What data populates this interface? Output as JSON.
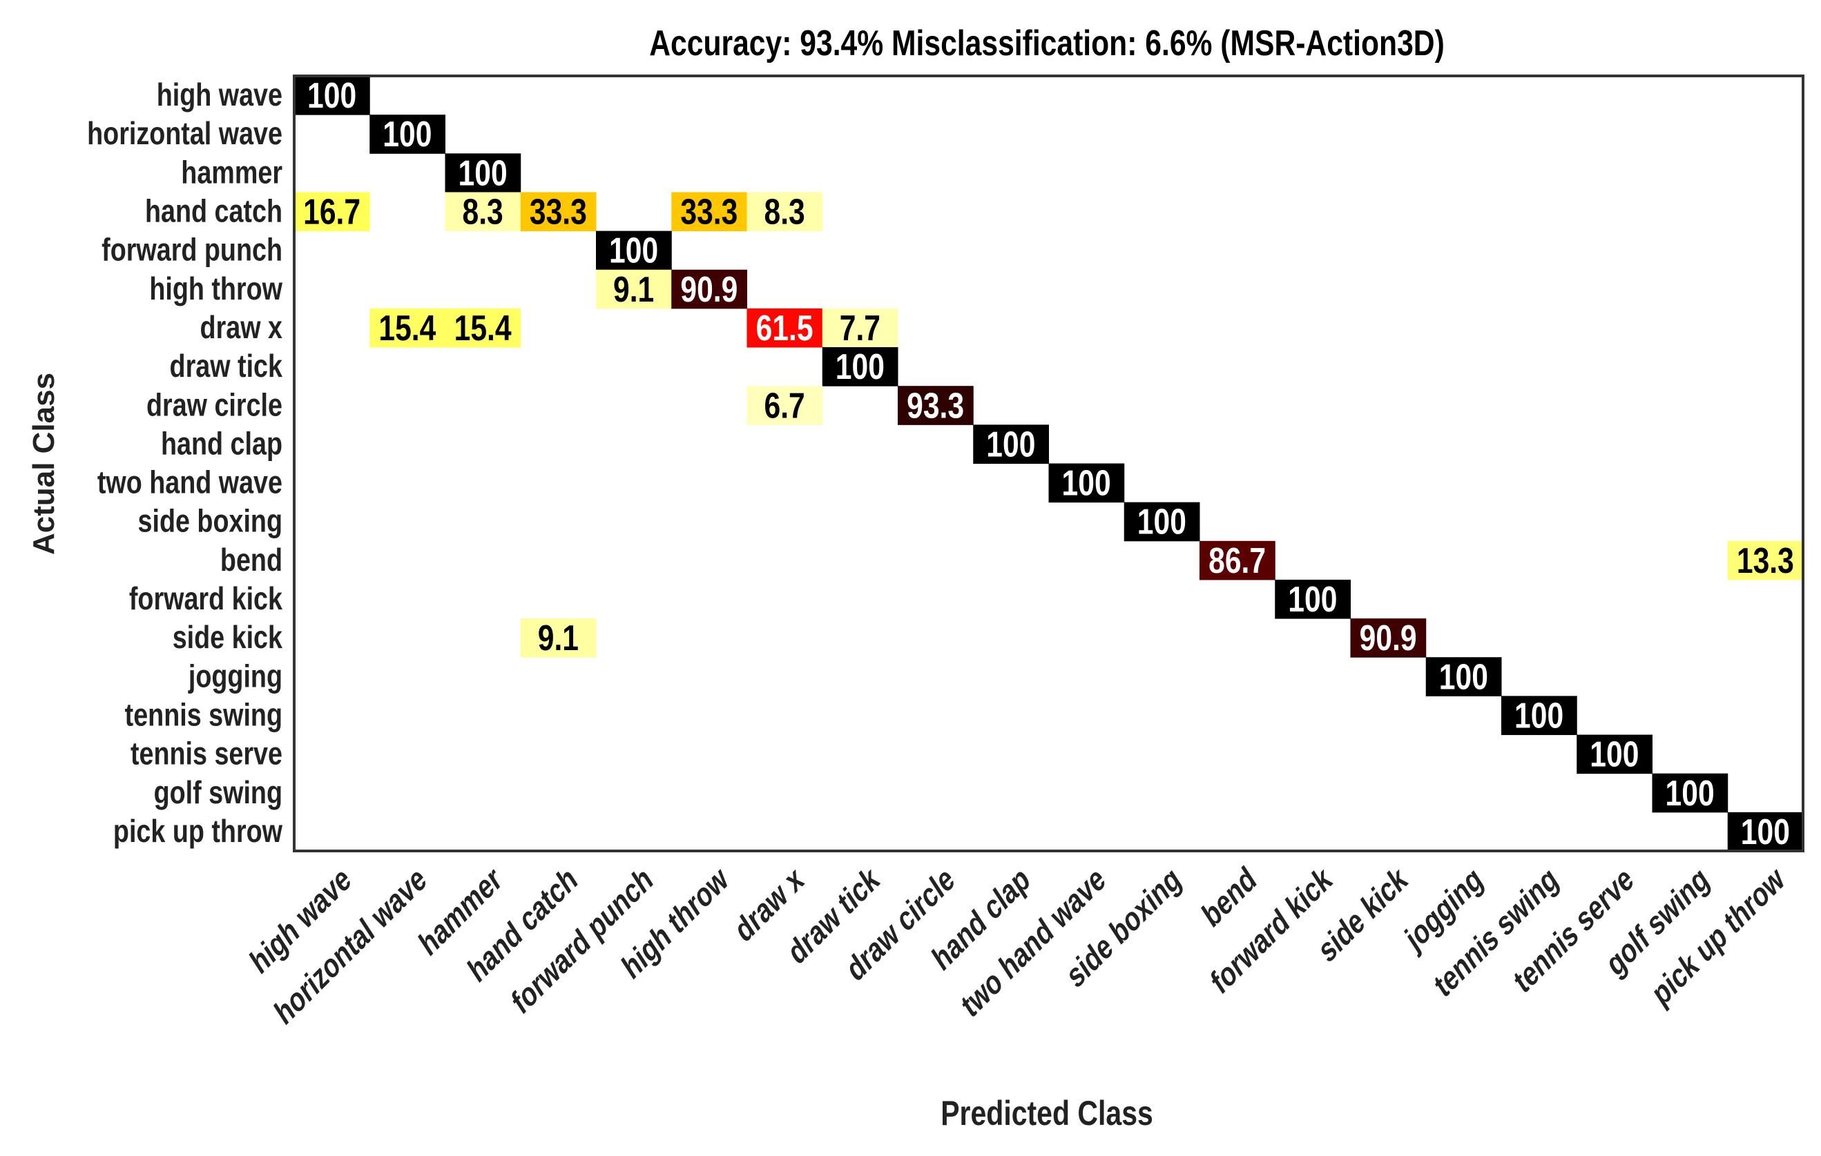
{
  "chart_data": {
    "type": "heatmap",
    "title": "Accuracy: 93.4%  Misclassification: 6.6% (MSR-Action3D)",
    "xlabel": "Predicted Class",
    "ylabel": "Actual Class",
    "colormap": "hot (reversed): 0 = white, 100 = black",
    "value_range": [
      0,
      100
    ],
    "zero_cells_shown": false,
    "grid": false,
    "categories": [
      "high wave",
      "horizontal wave",
      "hammer",
      "hand catch",
      "forward punch",
      "high throw",
      "draw x",
      "draw tick",
      "draw circle",
      "hand clap",
      "two hand wave",
      "side boxing",
      "bend",
      "forward kick",
      "side kick",
      "jogging",
      "tennis swing",
      "tennis serve",
      "golf swing",
      "pick up throw"
    ],
    "matrix": [
      [
        100,
        0,
        0,
        0,
        0,
        0,
        0,
        0,
        0,
        0,
        0,
        0,
        0,
        0,
        0,
        0,
        0,
        0,
        0,
        0
      ],
      [
        0,
        100,
        0,
        0,
        0,
        0,
        0,
        0,
        0,
        0,
        0,
        0,
        0,
        0,
        0,
        0,
        0,
        0,
        0,
        0
      ],
      [
        0,
        0,
        100,
        0,
        0,
        0,
        0,
        0,
        0,
        0,
        0,
        0,
        0,
        0,
        0,
        0,
        0,
        0,
        0,
        0
      ],
      [
        16.7,
        0,
        8.3,
        33.3,
        0,
        33.3,
        8.3,
        0,
        0,
        0,
        0,
        0,
        0,
        0,
        0,
        0,
        0,
        0,
        0,
        0
      ],
      [
        0,
        0,
        0,
        0,
        100,
        0,
        0,
        0,
        0,
        0,
        0,
        0,
        0,
        0,
        0,
        0,
        0,
        0,
        0,
        0
      ],
      [
        0,
        0,
        0,
        0,
        9.1,
        90.9,
        0,
        0,
        0,
        0,
        0,
        0,
        0,
        0,
        0,
        0,
        0,
        0,
        0,
        0
      ],
      [
        0,
        15.4,
        15.4,
        0,
        0,
        0,
        61.5,
        7.7,
        0,
        0,
        0,
        0,
        0,
        0,
        0,
        0,
        0,
        0,
        0,
        0
      ],
      [
        0,
        0,
        0,
        0,
        0,
        0,
        0,
        100,
        0,
        0,
        0,
        0,
        0,
        0,
        0,
        0,
        0,
        0,
        0,
        0
      ],
      [
        0,
        0,
        0,
        0,
        0,
        0,
        6.7,
        0,
        93.3,
        0,
        0,
        0,
        0,
        0,
        0,
        0,
        0,
        0,
        0,
        0
      ],
      [
        0,
        0,
        0,
        0,
        0,
        0,
        0,
        0,
        0,
        100,
        0,
        0,
        0,
        0,
        0,
        0,
        0,
        0,
        0,
        0
      ],
      [
        0,
        0,
        0,
        0,
        0,
        0,
        0,
        0,
        0,
        0,
        100,
        0,
        0,
        0,
        0,
        0,
        0,
        0,
        0,
        0
      ],
      [
        0,
        0,
        0,
        0,
        0,
        0,
        0,
        0,
        0,
        0,
        0,
        100,
        0,
        0,
        0,
        0,
        0,
        0,
        0,
        0
      ],
      [
        0,
        0,
        0,
        0,
        0,
        0,
        0,
        0,
        0,
        0,
        0,
        0,
        86.7,
        0,
        0,
        0,
        0,
        0,
        0,
        13.3
      ],
      [
        0,
        0,
        0,
        0,
        0,
        0,
        0,
        0,
        0,
        0,
        0,
        0,
        0,
        100,
        0,
        0,
        0,
        0,
        0,
        0
      ],
      [
        0,
        0,
        0,
        9.1,
        0,
        0,
        0,
        0,
        0,
        0,
        0,
        0,
        0,
        0,
        90.9,
        0,
        0,
        0,
        0,
        0
      ],
      [
        0,
        0,
        0,
        0,
        0,
        0,
        0,
        0,
        0,
        0,
        0,
        0,
        0,
        0,
        0,
        100,
        0,
        0,
        0,
        0
      ],
      [
        0,
        0,
        0,
        0,
        0,
        0,
        0,
        0,
        0,
        0,
        0,
        0,
        0,
        0,
        0,
        0,
        100,
        0,
        0,
        0
      ],
      [
        0,
        0,
        0,
        0,
        0,
        0,
        0,
        0,
        0,
        0,
        0,
        0,
        0,
        0,
        0,
        0,
        0,
        100,
        0,
        0
      ],
      [
        0,
        0,
        0,
        0,
        0,
        0,
        0,
        0,
        0,
        0,
        0,
        0,
        0,
        0,
        0,
        0,
        0,
        0,
        100,
        0
      ],
      [
        0,
        0,
        0,
        0,
        0,
        0,
        0,
        0,
        0,
        0,
        0,
        0,
        0,
        0,
        0,
        0,
        0,
        0,
        0,
        100
      ]
    ]
  }
}
